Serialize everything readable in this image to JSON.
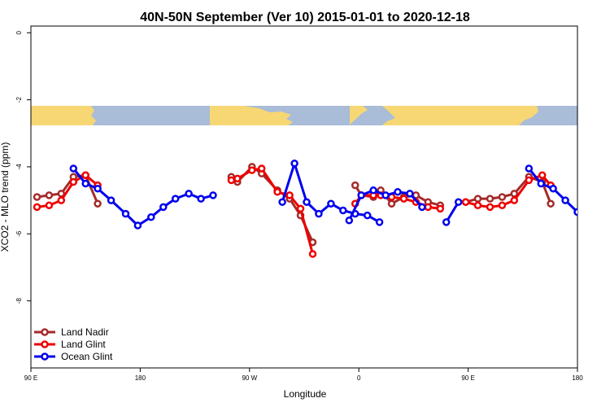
{
  "chart_data": {
    "type": "line",
    "title": "40N-50N September (Ver 10)   2015-01-01 to 2020-12-18",
    "xlabel": "Longitude",
    "ylabel": "XCO2 - MLO trend (ppm)",
    "xlim": [
      90,
      540
    ],
    "ylim": [
      -10,
      0.2
    ],
    "x_ticks": [
      {
        "value": 90,
        "label": "90 E"
      },
      {
        "value": 180,
        "label": "180"
      },
      {
        "value": 270,
        "label": "90 W"
      },
      {
        "value": 360,
        "label": "0"
      },
      {
        "value": 450,
        "label": "90 E"
      },
      {
        "value": 540,
        "label": "180"
      }
    ],
    "y_ticks": [
      {
        "value": 0,
        "label": "0"
      },
      {
        "value": -2,
        "label": "-2"
      },
      {
        "value": -4,
        "label": "-4"
      },
      {
        "value": -6,
        "label": "-6"
      },
      {
        "value": -8,
        "label": "-8"
      }
    ],
    "legend_position": "bottom-left",
    "series": [
      {
        "name": "Land Nadir",
        "color": "#a52a2a",
        "segments": [
          [
            [
              95,
              -4.9
            ],
            [
              105,
              -4.85
            ],
            [
              115,
              -4.8
            ],
            [
              125,
              -4.3
            ],
            [
              135,
              -4.25
            ],
            [
              145,
              -5.1
            ]
          ],
          [
            [
              255,
              -4.3
            ],
            [
              260,
              -4.45
            ],
            [
              272,
              -4.0
            ],
            [
              280,
              -4.2
            ],
            [
              293,
              -4.7
            ],
            [
              303,
              -4.95
            ],
            [
              312,
              -5.45
            ],
            [
              322,
              -6.25
            ]
          ],
          [
            [
              357,
              -4.55
            ],
            [
              362,
              -4.85
            ],
            [
              372,
              -4.9
            ],
            [
              378,
              -4.7
            ],
            [
              387,
              -5.1
            ],
            [
              397,
              -4.9
            ],
            [
              407,
              -4.85
            ],
            [
              417,
              -5.05
            ],
            [
              427,
              -5.15
            ]
          ],
          [
            [
              448,
              -5.05
            ],
            [
              458,
              -4.95
            ],
            [
              468,
              -4.95
            ],
            [
              478,
              -4.9
            ],
            [
              488,
              -4.8
            ],
            [
              500,
              -4.3
            ],
            [
              511,
              -4.45
            ],
            [
              518,
              -5.1
            ]
          ]
        ]
      },
      {
        "name": "Land Glint",
        "color": "#ee0000",
        "segments": [
          [
            [
              95,
              -5.2
            ],
            [
              105,
              -5.15
            ],
            [
              115,
              -5.0
            ],
            [
              125,
              -4.45
            ],
            [
              135,
              -4.25
            ],
            [
              145,
              -4.55
            ]
          ],
          [
            [
              255,
              -4.4
            ],
            [
              260,
              -4.35
            ],
            [
              272,
              -4.1
            ],
            [
              280,
              -4.05
            ],
            [
              293,
              -4.75
            ],
            [
              303,
              -4.85
            ],
            [
              312,
              -5.25
            ],
            [
              322,
              -6.6
            ]
          ],
          [
            [
              357,
              -5.1
            ],
            [
              362,
              -4.85
            ],
            [
              372,
              -4.85
            ],
            [
              378,
              -4.85
            ],
            [
              387,
              -4.9
            ],
            [
              397,
              -4.95
            ],
            [
              407,
              -5.05
            ],
            [
              417,
              -5.2
            ],
            [
              427,
              -5.25
            ]
          ],
          [
            [
              448,
              -5.05
            ],
            [
              458,
              -5.15
            ],
            [
              468,
              -5.2
            ],
            [
              478,
              -5.15
            ],
            [
              488,
              -5.0
            ],
            [
              500,
              -4.4
            ],
            [
              511,
              -4.25
            ],
            [
              518,
              -4.55
            ]
          ]
        ]
      },
      {
        "name": "Ocean Glint",
        "color": "#0000ee",
        "segments": [
          [
            [
              125,
              -4.05
            ],
            [
              135,
              -4.5
            ],
            [
              145,
              -4.65
            ],
            [
              156,
              -5.0
            ],
            [
              168,
              -5.4
            ],
            [
              178,
              -5.75
            ],
            [
              189,
              -5.5
            ],
            [
              199,
              -5.2
            ],
            [
              209,
              -4.95
            ],
            [
              220,
              -4.8
            ],
            [
              230,
              -4.95
            ],
            [
              240,
              -4.85
            ]
          ],
          [
            [
              297,
              -5.05
            ],
            [
              307,
              -3.9
            ],
            [
              317,
              -5.05
            ],
            [
              327,
              -5.4
            ],
            [
              337,
              -5.1
            ],
            [
              347,
              -5.3
            ],
            [
              357,
              -5.4
            ],
            [
              367,
              -5.45
            ],
            [
              377,
              -5.65
            ]
          ],
          [
            [
              352,
              -5.6
            ],
            [
              362,
              -4.85
            ],
            [
              372,
              -4.7
            ],
            [
              382,
              -4.85
            ],
            [
              392,
              -4.75
            ],
            [
              402,
              -4.8
            ],
            [
              412,
              -5.2
            ]
          ],
          [
            [
              432,
              -5.65
            ],
            [
              442,
              -5.05
            ]
          ],
          [
            [
              500,
              -4.05
            ],
            [
              510,
              -4.5
            ],
            [
              520,
              -4.65
            ],
            [
              530,
              -5.0
            ],
            [
              540,
              -5.35
            ],
            [
              550,
              -5.75
            ]
          ]
        ]
      }
    ]
  }
}
